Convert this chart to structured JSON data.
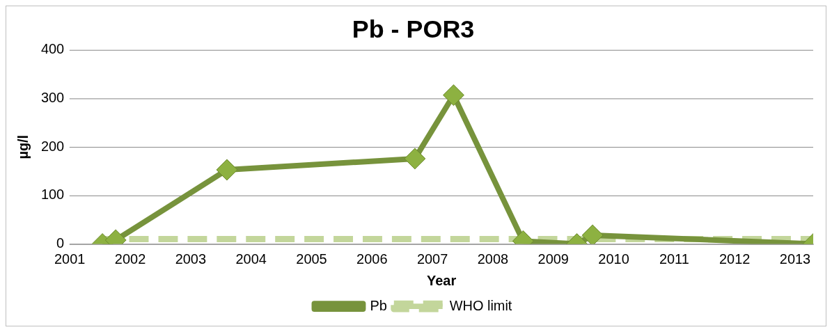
{
  "chart_data": {
    "type": "line",
    "title": "Pb - POR3",
    "xlabel": "Year",
    "ylabel": "µg/l",
    "xlim": [
      2001,
      2013.3
    ],
    "xticks": [
      2001,
      2002,
      2003,
      2004,
      2005,
      2006,
      2007,
      2008,
      2009,
      2010,
      2011,
      2012,
      2013
    ],
    "ylim": [
      0,
      400
    ],
    "yticks": [
      0,
      100,
      200,
      300,
      400
    ],
    "grid": "y",
    "legend": "bottom",
    "series": [
      {
        "name": "Pb",
        "color": "#77933c",
        "marker": "diamond",
        "line_style": "solid",
        "x": [
          2001.54,
          2001.76,
          2003.6,
          2006.71,
          2007.35,
          2008.5,
          2009.39,
          2009.65,
          2013.3
        ],
        "values": [
          0,
          8,
          153,
          176,
          307,
          6,
          0,
          18,
          0
        ]
      },
      {
        "name": "WHO limit",
        "color": "#c3d69b",
        "marker": "none",
        "line_style": "dashed",
        "x": [
          2001.5,
          2013.3
        ],
        "values": [
          10,
          10
        ]
      }
    ]
  }
}
